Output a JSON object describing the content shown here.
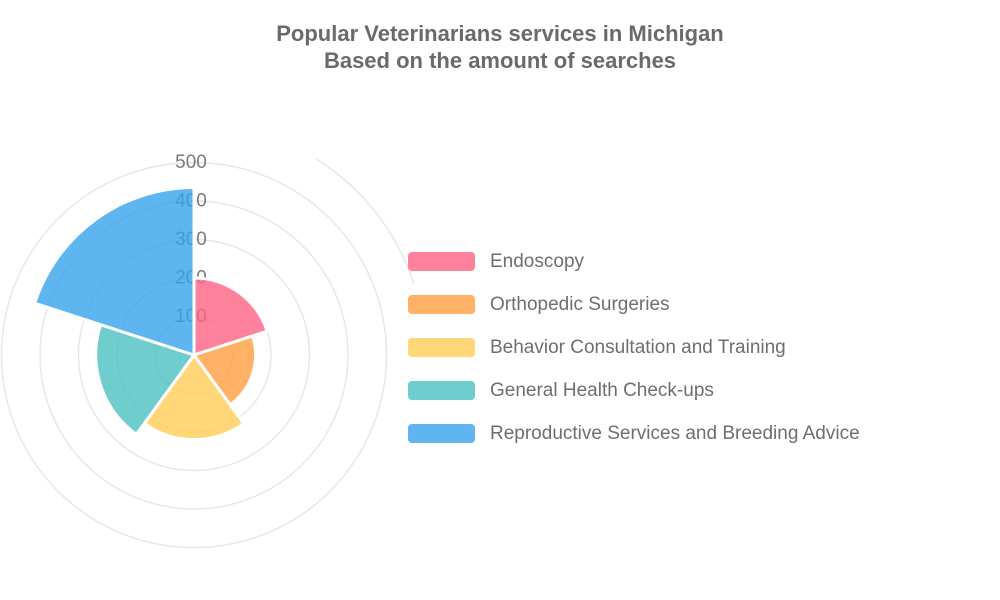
{
  "title": {
    "line1": "Popular Veterinarians services in Michigan",
    "line2": "Based on the amount of searches"
  },
  "chart_data": {
    "type": "polar-area",
    "categories": [
      "Endoscopy",
      "Orthopedic Surgeries",
      "Behavior Consultation and Training",
      "General Health Check-ups",
      "Reproductive Services and Breeding Advice"
    ],
    "values": [
      200,
      160,
      220,
      255,
      435
    ],
    "colors": [
      "#ff6384",
      "#ff9f40",
      "#ffcd56",
      "#4bc0c0",
      "#36a2eb"
    ],
    "fill_opacity": 0.8,
    "radial_ticks": [
      100,
      200,
      300,
      400,
      500
    ],
    "rmax": 500,
    "start_angle_deg": 90,
    "direction": "clockwise",
    "sector_span_deg": 72,
    "grid": {
      "color": "#e6e6e6",
      "tick_color": "#7a7a7a",
      "extra_outer_arc": {
        "value": 600,
        "start_deg": 58,
        "end_deg": 18
      }
    },
    "legend_position": "right"
  }
}
